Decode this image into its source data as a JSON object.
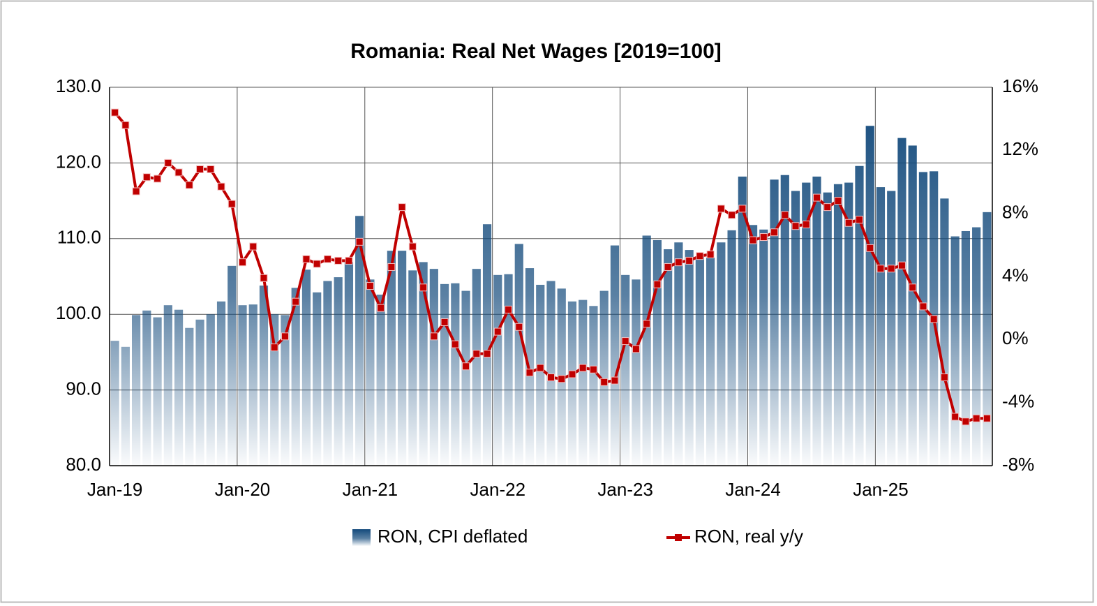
{
  "chart_data": {
    "type": "bar-line",
    "title": "Romania: Real Net Wages [2019=100]",
    "categories": [
      "Jan-19",
      null,
      null,
      null,
      null,
      null,
      null,
      null,
      null,
      null,
      null,
      null,
      "Jan-20",
      null,
      null,
      null,
      null,
      null,
      null,
      null,
      null,
      null,
      null,
      null,
      "Jan-21",
      null,
      null,
      null,
      null,
      null,
      null,
      null,
      null,
      null,
      null,
      null,
      "Jan-22",
      null,
      null,
      null,
      null,
      null,
      null,
      null,
      null,
      null,
      null,
      null,
      "Jan-23",
      null,
      null,
      null,
      null,
      null,
      null,
      null,
      null,
      null,
      null,
      null,
      "Jan-24",
      null,
      null,
      null,
      null,
      null,
      null,
      null,
      null,
      null,
      null,
      null,
      "Jan-25",
      null,
      null,
      null,
      null,
      null,
      null,
      null,
      null,
      null,
      null
    ],
    "series": [
      {
        "name": "RON, CPI deflated",
        "type": "bar",
        "color": "#134a7c",
        "values": [
          96.5,
          95.7,
          99.9,
          100.5,
          99.6,
          101.2,
          100.6,
          98.2,
          99.3,
          100.0,
          101.7,
          106.4,
          101.2,
          101.3,
          103.8,
          100.0,
          99.9,
          103.5,
          105.9,
          102.9,
          104.4,
          104.9,
          106.9,
          113.0,
          104.6,
          102.6,
          108.4,
          108.4,
          105.8,
          106.9,
          106.0,
          104.0,
          104.1,
          103.1,
          106.0,
          111.9,
          105.2,
          105.3,
          109.3,
          106.1,
          103.9,
          104.4,
          103.4,
          101.7,
          101.9,
          101.1,
          103.1,
          109.1,
          105.2,
          104.6,
          110.4,
          109.8,
          108.6,
          109.5,
          108.5,
          107.6,
          107.5,
          109.5,
          111.1,
          118.2,
          111.8,
          111.2,
          117.8,
          118.4,
          116.3,
          117.4,
          118.2,
          116.1,
          117.2,
          117.4,
          119.6,
          124.9,
          116.8,
          116.3,
          123.3,
          122.3,
          118.8,
          118.9,
          115.3,
          110.3,
          111.0,
          111.5,
          113.5
        ]
      },
      {
        "name": "RON, real y/y",
        "type": "line",
        "axis": "y2",
        "color": "#c00000",
        "values": [
          14.4,
          13.6,
          9.4,
          10.3,
          10.2,
          11.2,
          10.6,
          9.8,
          10.8,
          10.8,
          9.7,
          8.6,
          4.9,
          5.9,
          3.9,
          -0.5,
          0.2,
          2.4,
          5.1,
          4.8,
          5.1,
          5.0,
          5.0,
          6.2,
          3.4,
          2.0,
          4.6,
          8.4,
          5.9,
          3.3,
          0.2,
          1.1,
          -0.3,
          -1.7,
          -0.9,
          -0.9,
          0.5,
          1.9,
          0.8,
          -2.1,
          -1.8,
          -2.4,
          -2.5,
          -2.2,
          -1.8,
          -1.9,
          -2.7,
          -2.6,
          -0.1,
          -0.6,
          1.0,
          3.5,
          4.6,
          4.9,
          5.0,
          5.3,
          5.4,
          8.3,
          7.9,
          8.3,
          6.3,
          6.5,
          6.8,
          7.9,
          7.2,
          7.3,
          9.0,
          8.4,
          8.8,
          7.4,
          7.6,
          5.8,
          4.5,
          4.5,
          4.7,
          3.3,
          2.1,
          1.3,
          -2.4,
          -4.9,
          -5.2,
          -5.0,
          -5.0
        ]
      }
    ],
    "ylim": [
      80,
      130
    ],
    "yticks": [
      {
        "value": 80,
        "label": "80.0"
      },
      {
        "value": 90,
        "label": "90.0"
      },
      {
        "value": 100,
        "label": "100.0"
      },
      {
        "value": 110,
        "label": "110.0"
      },
      {
        "value": 120,
        "label": "120.0"
      },
      {
        "value": 130,
        "label": "130.0"
      }
    ],
    "y2lim": [
      -8,
      16
    ],
    "y2ticks": [
      {
        "value": -8,
        "label": "-8%"
      },
      {
        "value": -4,
        "label": "-4%"
      },
      {
        "value": 0,
        "label": "0%"
      },
      {
        "value": 4,
        "label": "4%"
      },
      {
        "value": 8,
        "label": "8%"
      },
      {
        "value": 12,
        "label": "12%"
      },
      {
        "value": 16,
        "label": "16%"
      }
    ],
    "grid": true,
    "legend": "bottom"
  }
}
